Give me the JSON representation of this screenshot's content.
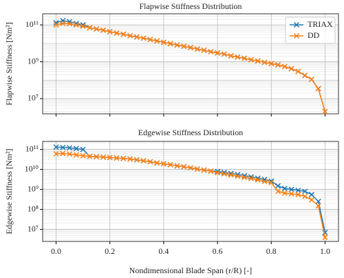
{
  "chart_data": [
    {
      "type": "line",
      "title": "Flapwise Stiffness Distribution",
      "ylabel": "Flapwise Stiffness [Nm²]",
      "log_y": true,
      "grid": true,
      "legend": "upper right",
      "x": [
        0,
        0.025,
        0.05,
        0.075,
        0.1,
        0.125,
        0.15,
        0.175,
        0.2,
        0.225,
        0.25,
        0.275,
        0.3,
        0.325,
        0.35,
        0.375,
        0.4,
        0.425,
        0.45,
        0.475,
        0.5,
        0.525,
        0.55,
        0.575,
        0.6,
        0.625,
        0.65,
        0.675,
        0.7,
        0.725,
        0.75,
        0.775,
        0.8,
        0.825,
        0.85,
        0.875,
        0.9,
        0.925,
        0.95,
        0.975,
        1
      ],
      "xlim": [
        -0.05,
        1.05
      ],
      "xticks": [
        0,
        0.2,
        0.4,
        0.6,
        0.8,
        1
      ],
      "ylim": [
        1500000,
        400000000000
      ],
      "yticks": [
        {
          "value": 10000000,
          "label": "10⁷"
        },
        {
          "value": 1000000000,
          "label": "10⁹"
        },
        {
          "value": 100000000000,
          "label": "10¹¹"
        }
      ],
      "series": [
        {
          "name": "TRIAX",
          "color": "#1f77b4",
          "values": [
            130000000000,
            170000000000,
            150000000000,
            120000000000,
            100000000000,
            71000000000,
            60000000000,
            51000000000,
            43000000000,
            36000000000,
            31000000000,
            26000000000,
            22000000000,
            19000000000,
            16000000000,
            13500000000,
            11400000000,
            9600000000,
            8100000000,
            6900000000,
            5900000000,
            4900000000,
            4200000000,
            3500000000,
            3000000000,
            2600000000,
            2100000000,
            1800000000,
            1550000000,
            1300000000,
            1100000000,
            930000000,
            800000000,
            680000000,
            550000000,
            420000000,
            300000000,
            180000000,
            110000000,
            35000000,
            2000000
          ]
        },
        {
          "name": "DD",
          "color": "#ff7f0e",
          "values": [
            100000000000,
            120000000000,
            115000000000,
            100000000000,
            85000000000,
            71000000000,
            60000000000,
            51000000000,
            43000000000,
            36000000000,
            31000000000,
            26000000000,
            22000000000,
            19000000000,
            16000000000,
            13500000000,
            11400000000,
            9600000000,
            8100000000,
            6900000000,
            5900000000,
            4900000000,
            4200000000,
            3500000000,
            3000000000,
            2600000000,
            2100000000,
            1800000000,
            1550000000,
            1300000000,
            1100000000,
            930000000,
            800000000,
            680000000,
            550000000,
            420000000,
            300000000,
            180000000,
            110000000,
            35000000,
            2000000
          ]
        }
      ]
    },
    {
      "type": "line",
      "title": "Edgewise Stiffness Distribution",
      "ylabel": "Edgewise Stiffness [Nm²]",
      "xlabel": "Nondimensional Blade Span (r/R) [-]",
      "log_y": true,
      "grid": true,
      "x": [
        0,
        0.025,
        0.05,
        0.075,
        0.1,
        0.125,
        0.15,
        0.175,
        0.2,
        0.225,
        0.25,
        0.275,
        0.3,
        0.325,
        0.35,
        0.375,
        0.4,
        0.425,
        0.45,
        0.475,
        0.5,
        0.525,
        0.55,
        0.575,
        0.6,
        0.625,
        0.65,
        0.675,
        0.7,
        0.725,
        0.75,
        0.775,
        0.8,
        0.825,
        0.85,
        0.875,
        0.9,
        0.925,
        0.95,
        0.975,
        1
      ],
      "xlim": [
        -0.05,
        1.05
      ],
      "xticks": [
        {
          "value": 0,
          "label": "0.0"
        },
        0.2,
        0.4,
        0.6,
        0.8,
        {
          "value": 1,
          "label": "1.0"
        }
      ],
      "ylim": [
        2500000,
        250000000000
      ],
      "yticks": [
        {
          "value": 10000000,
          "label": "10⁷"
        },
        {
          "value": 100000000,
          "label": "10⁸"
        },
        {
          "value": 1000000000,
          "label": "10⁹"
        },
        {
          "value": 10000000000,
          "label": "10¹⁰"
        },
        {
          "value": 100000000000,
          "label": "10¹¹"
        }
      ],
      "series": [
        {
          "name": "TRIAX",
          "color": "#1f77b4",
          "values": [
            130000000000,
            125000000000,
            120000000000,
            110000000000,
            100000000000,
            45000000000,
            43000000000,
            41000000000,
            39000000000,
            37000000000,
            35000000000,
            33000000000,
            30000000000,
            27000000000,
            24000000000,
            21000000000,
            19000000000,
            17000000000,
            15000000000,
            13500000000,
            12000000000,
            10500000000,
            9200000000,
            8200000000,
            7800000000,
            7000000000,
            6200000000,
            5500000000,
            4800000000,
            4200000000,
            3600000000,
            3100000000,
            2600000000,
            1500000000,
            1100000000,
            1000000000,
            900000000,
            800000000,
            550000000,
            250000000,
            7000000
          ]
        },
        {
          "name": "DD",
          "color": "#ff7f0e",
          "values": [
            60000000000,
            62000000000,
            58000000000,
            53000000000,
            48000000000,
            45000000000,
            43000000000,
            41000000000,
            39000000000,
            37000000000,
            35000000000,
            33000000000,
            30000000000,
            27000000000,
            24000000000,
            21000000000,
            19000000000,
            17000000000,
            15000000000,
            13500000000,
            12000000000,
            10500000000,
            9200000000,
            8200000000,
            6800000000,
            6000000000,
            5300000000,
            4600000000,
            4000000000,
            3500000000,
            3000000000,
            2500000000,
            2200000000,
            800000000,
            650000000,
            600000000,
            550000000,
            450000000,
            300000000,
            150000000,
            4000000
          ]
        }
      ]
    }
  ]
}
